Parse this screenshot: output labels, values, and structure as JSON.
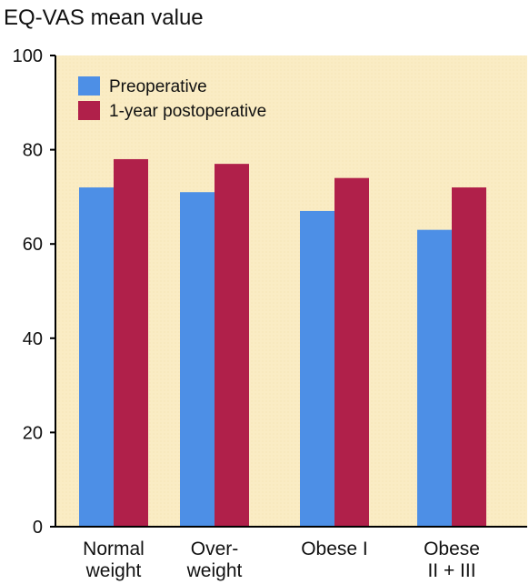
{
  "chart_data": {
    "type": "bar",
    "title": "EQ-VAS mean value",
    "xlabel": "",
    "ylabel": "",
    "ylim": [
      0,
      100
    ],
    "yticks": [
      "0",
      "20",
      "40",
      "60",
      "80",
      "100"
    ],
    "categories": [
      [
        "Normal",
        "weight"
      ],
      [
        "Over-",
        "weight"
      ],
      [
        "Obese I"
      ],
      [
        "Obese",
        "II + III"
      ]
    ],
    "series": [
      {
        "name": "Preoperative",
        "color": "#4d8fe6",
        "values": [
          72,
          71,
          67,
          63
        ]
      },
      {
        "name": "1-year postoperative",
        "color": "#b0204a",
        "values": [
          78,
          77,
          74,
          72
        ]
      }
    ],
    "legend": "top-left",
    "grid": false,
    "background_color": "#faecc4"
  }
}
